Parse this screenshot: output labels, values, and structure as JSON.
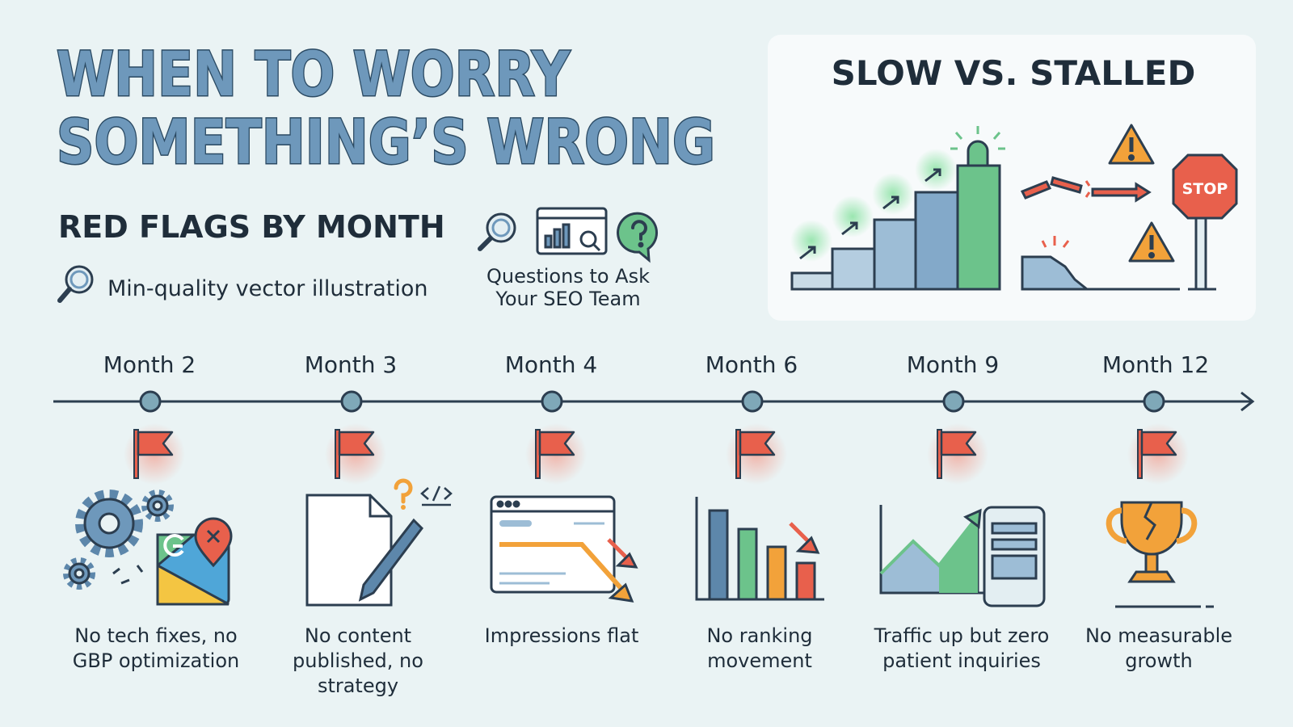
{
  "header": {
    "title_lines": [
      "WHEN TO WORRY",
      "SOMETHING’S WRONG"
    ],
    "subtitle": "RED FLAGS BY MONTH",
    "note": "Min-quality vector illustration",
    "questions_lines": [
      "Questions to Ask",
      "Your SEO Team"
    ]
  },
  "panel": {
    "title": "SLOW VS. STALLED",
    "stop_sign": "STOP"
  },
  "timeline": {
    "items": [
      {
        "month": "Month 2",
        "flag": "No tech fixes, no GBP optimization"
      },
      {
        "month": "Month 3",
        "flag": "No content published, no strategy"
      },
      {
        "month": "Month 4",
        "flag": "Impressions flat"
      },
      {
        "month": "Month 6",
        "flag": "No ranking movement"
      },
      {
        "month": "Month 9",
        "flag": "Traffic up but zero patient inquiries"
      },
      {
        "month": "Month 12",
        "flag": "No measurable growth"
      }
    ]
  }
}
